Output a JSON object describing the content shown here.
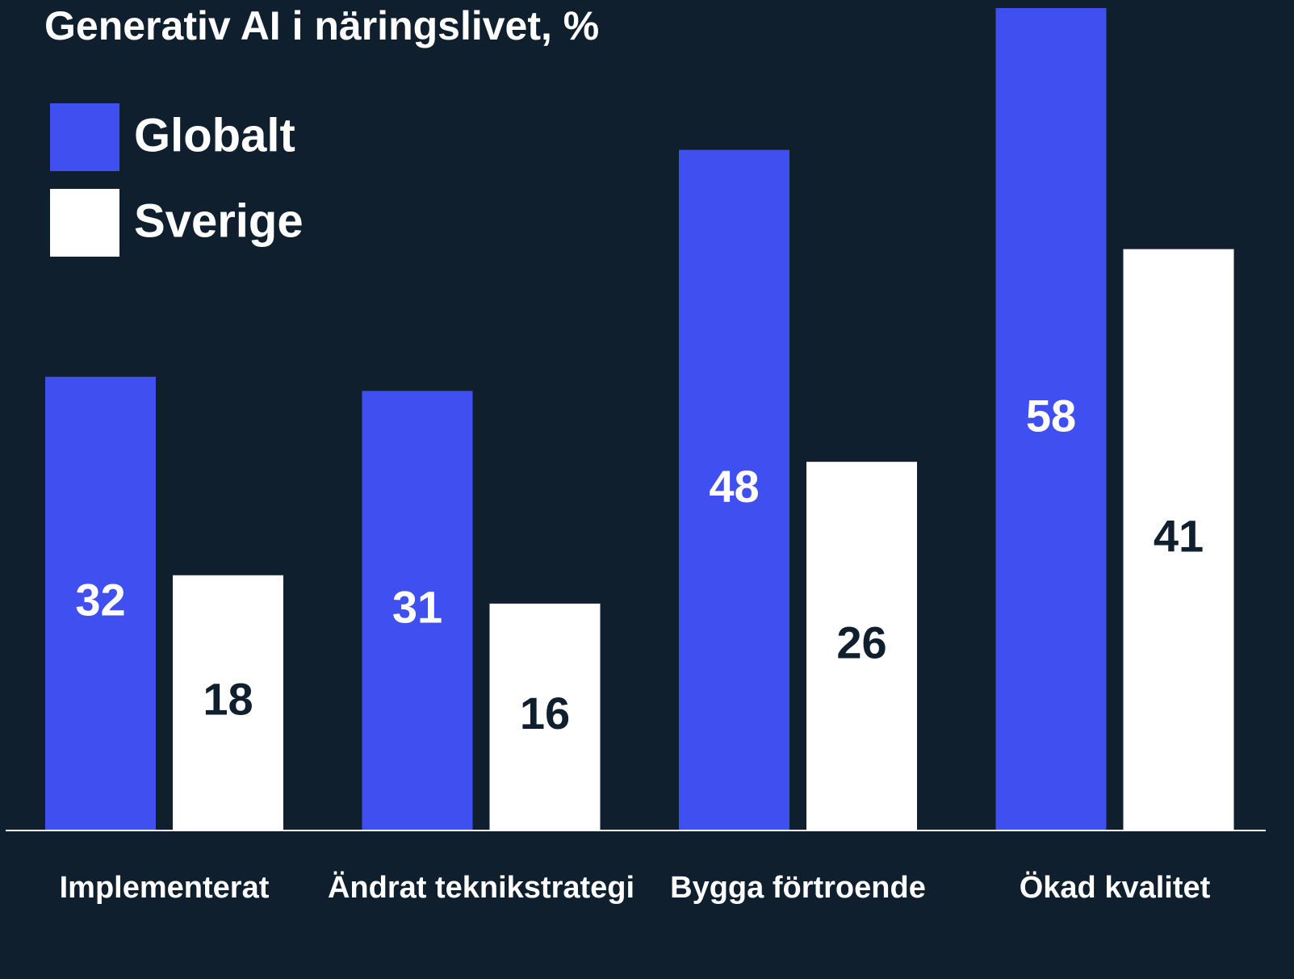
{
  "chart_data": {
    "type": "bar",
    "title": "Generativ AI i näringslivet, %",
    "categories": [
      "Implementerat",
      "Ändrat teknikstrategi",
      "Bygga förtroende",
      "Ökad kvalitet"
    ],
    "series": [
      {
        "name": "Globalt",
        "color": "#4050f0",
        "values": [
          32,
          31,
          48,
          58
        ]
      },
      {
        "name": "Sverige",
        "color": "#ffffff",
        "values": [
          18,
          16,
          26,
          41
        ]
      }
    ],
    "ylim": [
      0,
      58
    ]
  }
}
